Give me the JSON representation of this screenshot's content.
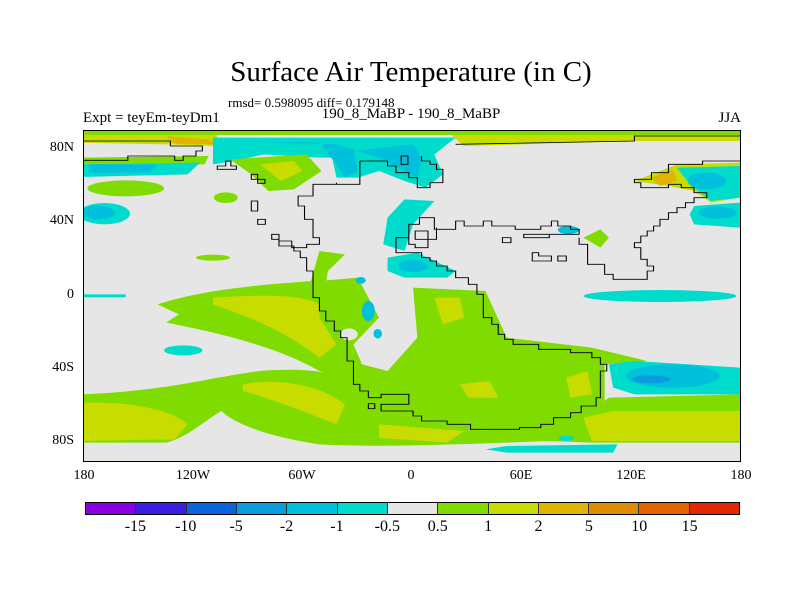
{
  "header": {
    "title": "Surface Air Temperature (in C)",
    "stats": "rmsd= 0.598095 diff= 0.179148",
    "left_label": "Expt = teyEm-teyDm1",
    "center_label": "190_8_MaBP - 190_8_MaBP",
    "right_label": "JJA"
  },
  "chart_data": {
    "type": "heatmap",
    "title": "Surface Air Temperature (in C)",
    "projection": "cylindrical equidistant",
    "x_ticks": [
      {
        "value": -180,
        "label": "180"
      },
      {
        "value": -120,
        "label": "120W"
      },
      {
        "value": -60,
        "label": "60W"
      },
      {
        "value": 0,
        "label": "0"
      },
      {
        "value": 60,
        "label": "60E"
      },
      {
        "value": 120,
        "label": "120E"
      },
      {
        "value": 180,
        "label": "180"
      }
    ],
    "y_ticks": [
      {
        "value": 80,
        "label": "80N"
      },
      {
        "value": 40,
        "label": "40N"
      },
      {
        "value": 0,
        "label": "0"
      },
      {
        "value": -40,
        "label": "40S"
      },
      {
        "value": -80,
        "label": "80S"
      }
    ],
    "xlim": [
      -180,
      180
    ],
    "ylim": [
      -90,
      90
    ],
    "colorbar": {
      "levels": [
        "-15",
        "-10",
        "-5",
        "-2",
        "-1",
        "-0.5",
        "0.5",
        "1",
        "2",
        "5",
        "10",
        "15"
      ],
      "colors": [
        "#8a00e0",
        "#3a1ee0",
        "#0a64dc",
        "#0a9cdc",
        "#00c0dc",
        "#00dccc",
        "#e6e6e6",
        "#80dc00",
        "#c8dc00",
        "#e0b400",
        "#e08c00",
        "#e06400",
        "#e02800"
      ]
    }
  },
  "colors": {
    "background": "#e6e6e6",
    "green": "#80dc00",
    "yellow_green": "#c8dc00",
    "orange": "#e0b400",
    "cyan": "#00c0dc",
    "teal": "#00dccc",
    "blue": "#0a9cdc"
  }
}
